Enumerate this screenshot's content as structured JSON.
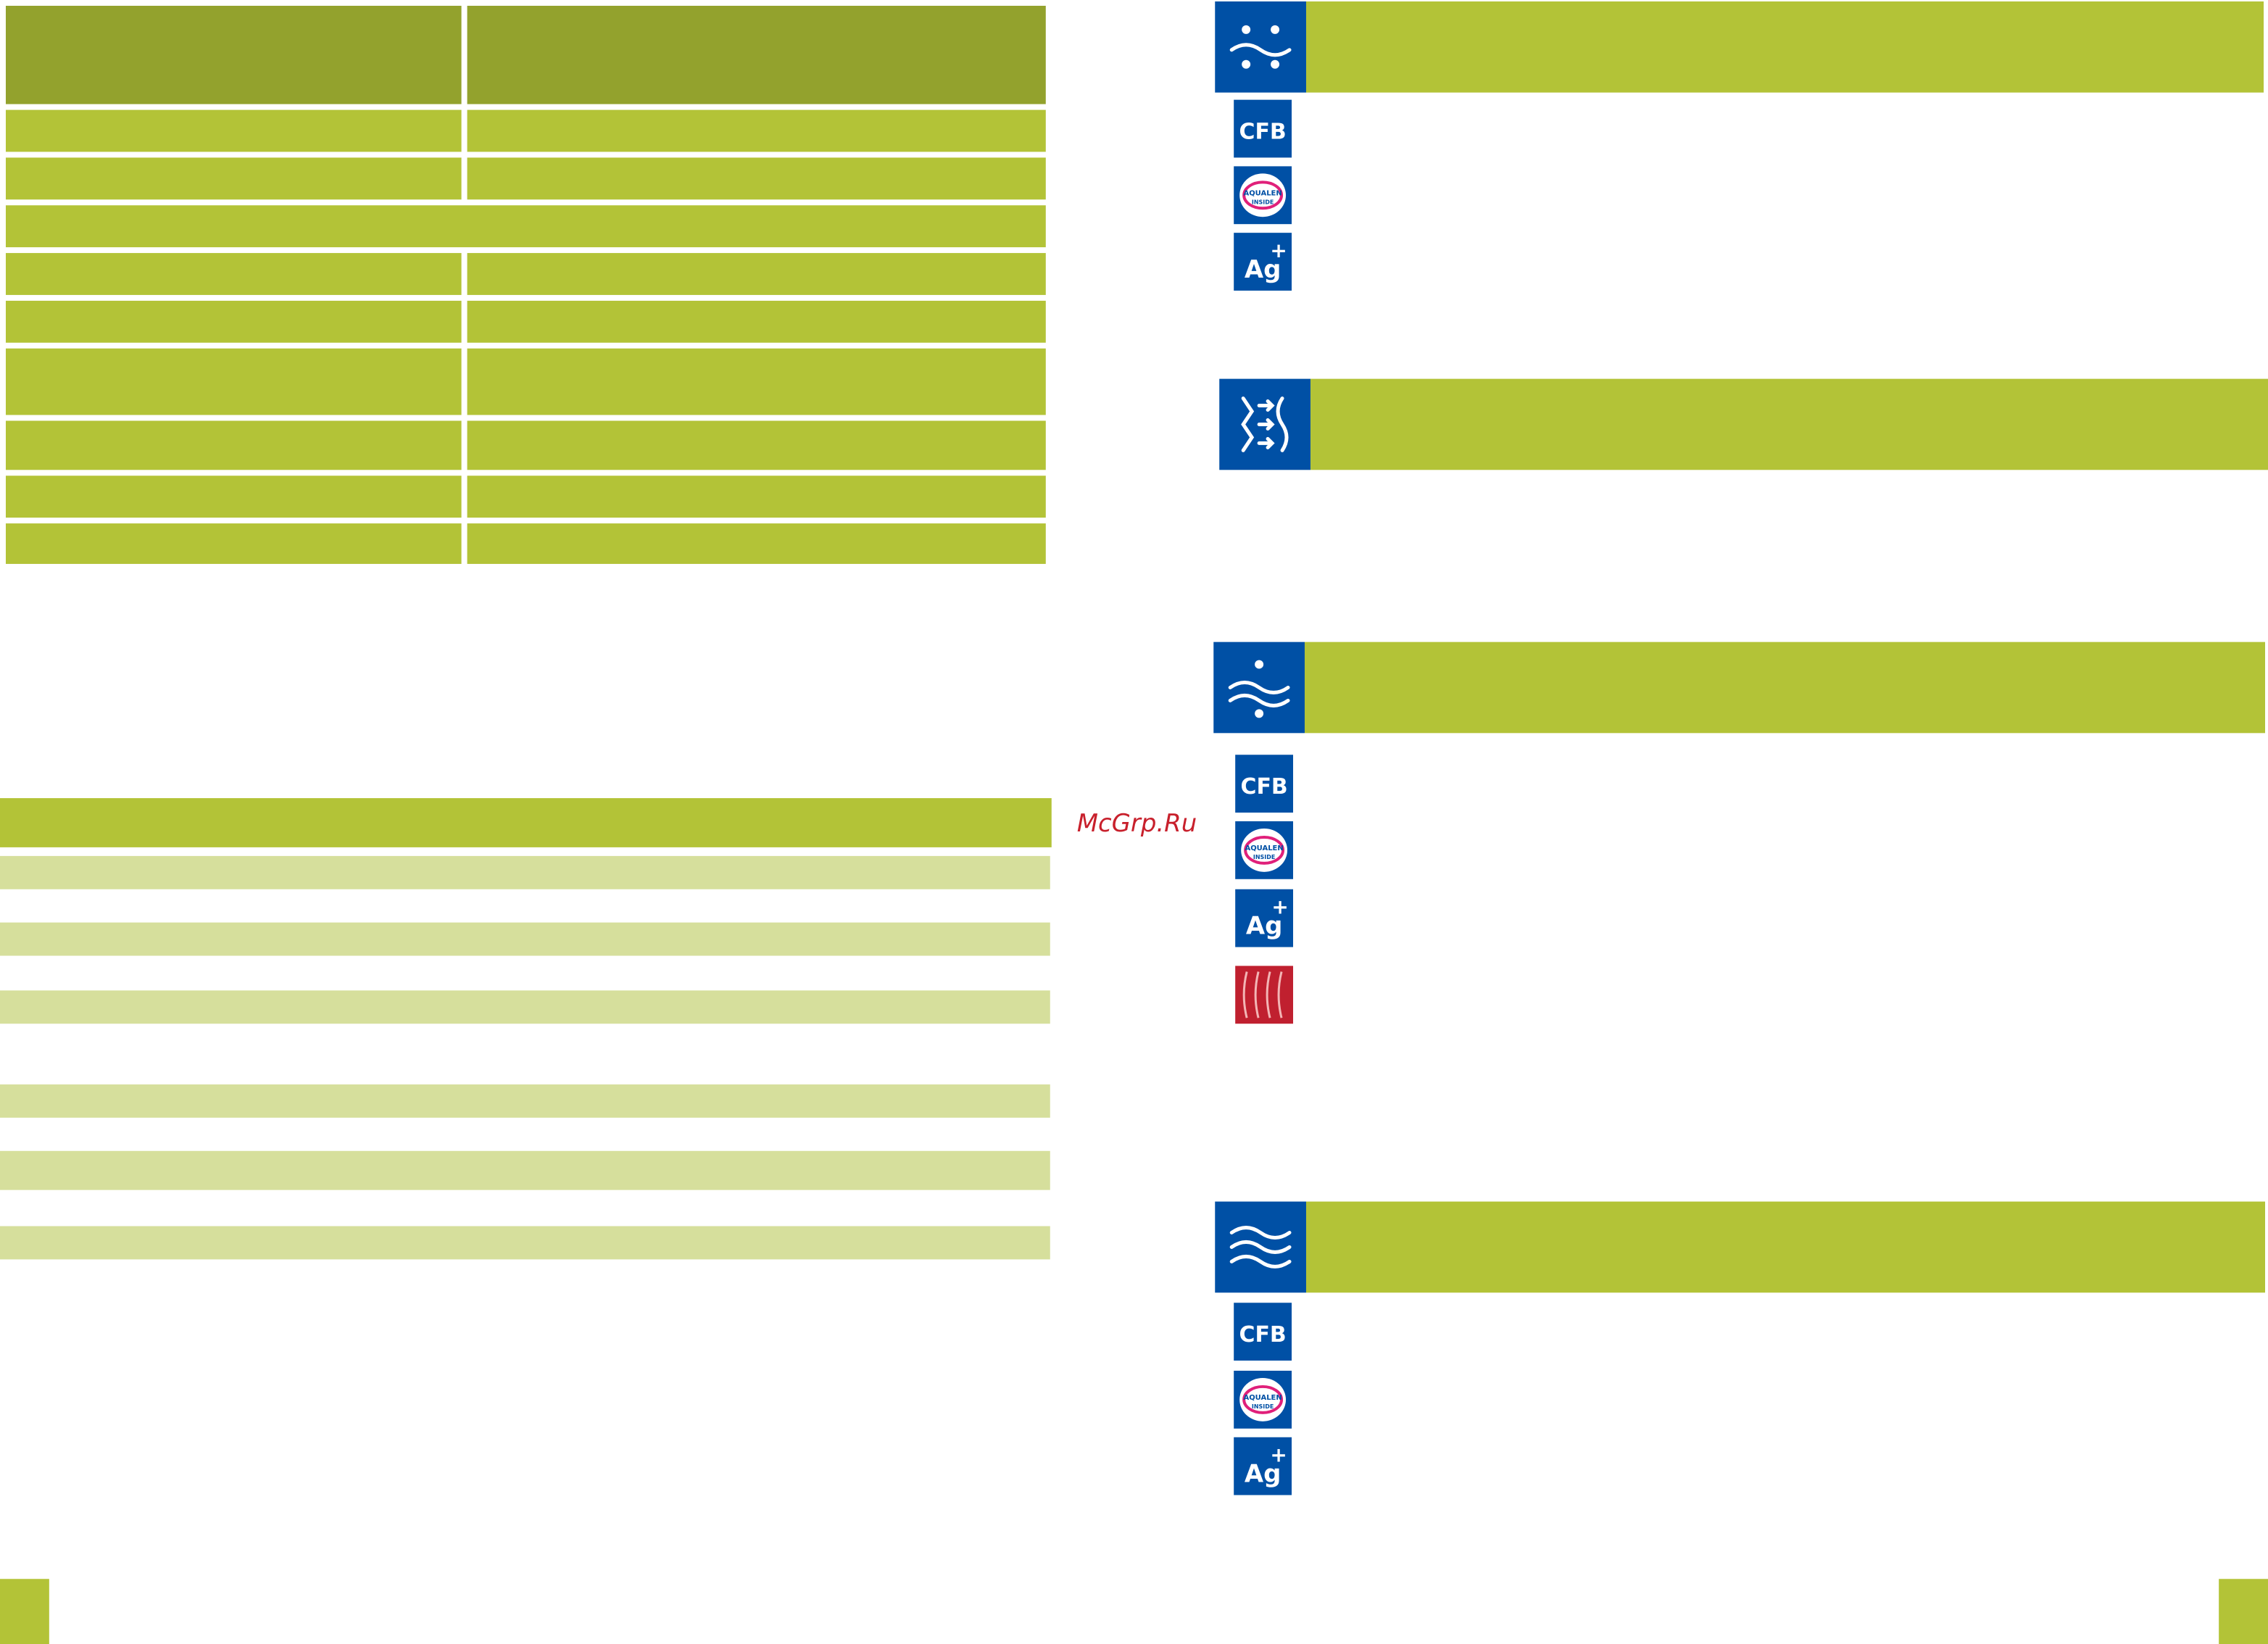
{
  "watermark": "McGrp.Ru",
  "sections": [
    {
      "badges": [
        {
          "text": "CFB"
        },
        {
          "text": "AQUALEN",
          "subtext": "INSIDE"
        },
        {
          "text": "Ag",
          "superscript": "+"
        }
      ]
    },
    {
      "badges": []
    },
    {
      "badges": [
        {
          "text": "CFB"
        },
        {
          "text": "AQUALEN",
          "subtext": "INSIDE"
        },
        {
          "text": "Ag",
          "superscript": "+"
        }
      ]
    },
    {
      "badges": [
        {
          "text": "CFB"
        },
        {
          "text": "AQUALEN",
          "subtext": "INSIDE"
        },
        {
          "text": "Ag",
          "superscript": "+"
        }
      ]
    }
  ]
}
